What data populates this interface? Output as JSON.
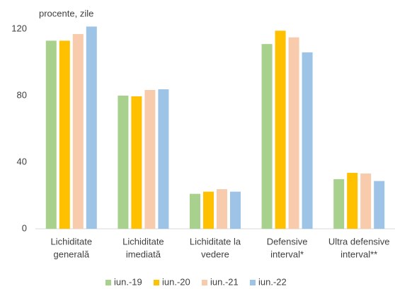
{
  "chart_data": {
    "type": "bar",
    "title": "procente, zile",
    "categories": [
      [
        "Lichiditate",
        "generală"
      ],
      [
        "Lichiditate",
        "imediată"
      ],
      [
        "Lichiditate la",
        "vedere"
      ],
      [
        "Defensive",
        "interval*"
      ],
      [
        "Ultra defensive",
        "interval**"
      ]
    ],
    "series": [
      {
        "name": "iun.-19",
        "color": "#a9d18e",
        "values": [
          113,
          80,
          21,
          111,
          29.8
        ]
      },
      {
        "name": "iun.-20",
        "color": "#ffc000",
        "values": [
          113,
          79.6,
          22.3,
          119,
          33.6
        ]
      },
      {
        "name": "iun.-21",
        "color": "#f8cbad",
        "values": [
          117,
          83.4,
          23.8,
          115,
          33.2
        ]
      },
      {
        "name": "iun.-22",
        "color": "#9dc3e6",
        "values": [
          121.5,
          83.8,
          22.3,
          106,
          28.7
        ]
      }
    ],
    "ylim": [
      0,
      130
    ],
    "yticks": [
      0,
      40,
      80,
      120
    ],
    "grid": false,
    "legend": "bottom"
  }
}
